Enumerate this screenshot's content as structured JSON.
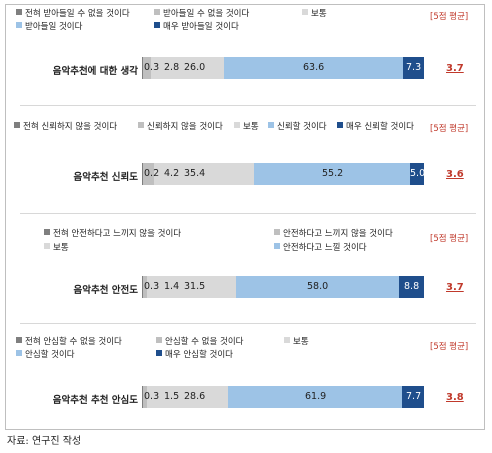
{
  "colors": {
    "s1": "#7f7f7f",
    "s2": "#bfbfbf",
    "s3": "#d9d9d9",
    "s4": "#9dc3e6",
    "s5": "#1f4e8c",
    "avg": "#c0392b"
  },
  "avg_header": "[5점 평균]",
  "source": "자료: 연구진 작성",
  "chart_data": [
    {
      "type": "bar",
      "stacked": true,
      "orientation": "horizontal",
      "category": "음악추천에 대한 생각",
      "legend": [
        "전혀 받아들일 수 없을 것이다",
        "받아들일 수 없을 것이다",
        "보통",
        "받아들일 것이다",
        "매우 받아들일 것이다"
      ],
      "values": [
        0.3,
        2.8,
        26.0,
        63.6,
        7.3
      ],
      "labels": [
        "0.3",
        "2.8",
        "26.0",
        "63.6",
        "7.3"
      ],
      "average": "3.7"
    },
    {
      "type": "bar",
      "stacked": true,
      "orientation": "horizontal",
      "category": "음악추천 신뢰도",
      "legend": [
        "전혀 신뢰하지 않을 것이다",
        "신뢰하지 않을 것이다",
        "보통",
        "신뢰할 것이다",
        "매우 신뢰할 것이다"
      ],
      "values": [
        0.2,
        4.2,
        35.4,
        55.2,
        5.0
      ],
      "labels": [
        "0.2",
        "4.2",
        "35.4",
        "55.2",
        "5.0"
      ],
      "average": "3.6"
    },
    {
      "type": "bar",
      "stacked": true,
      "orientation": "horizontal",
      "category": "음악추천 안전도",
      "legend": [
        "전혀 안전하다고 느끼지 않을 것이다",
        "안전하다고 느끼지 않을 것이다",
        "보통",
        "안전하다고 느낄 것이다",
        "매우 안전하다고 느낄 것이다"
      ],
      "values": [
        0.3,
        1.4,
        31.5,
        58.0,
        8.8
      ],
      "labels": [
        "0.3",
        "1.4",
        "31.5",
        "58.0",
        "8.8"
      ],
      "average": "3.7"
    },
    {
      "type": "bar",
      "stacked": true,
      "orientation": "horizontal",
      "category": "음악추천 추천 안심도",
      "legend": [
        "전혀 안심할 수 없을 것이다",
        "안심할 수 없을 것이다",
        "보통",
        "안심할 것이다",
        "매우 안심할 것이다"
      ],
      "values": [
        0.3,
        1.5,
        28.6,
        61.9,
        7.7
      ],
      "labels": [
        "0.3",
        "1.5",
        "28.6",
        "61.9",
        "7.7"
      ],
      "average": "3.8"
    }
  ]
}
